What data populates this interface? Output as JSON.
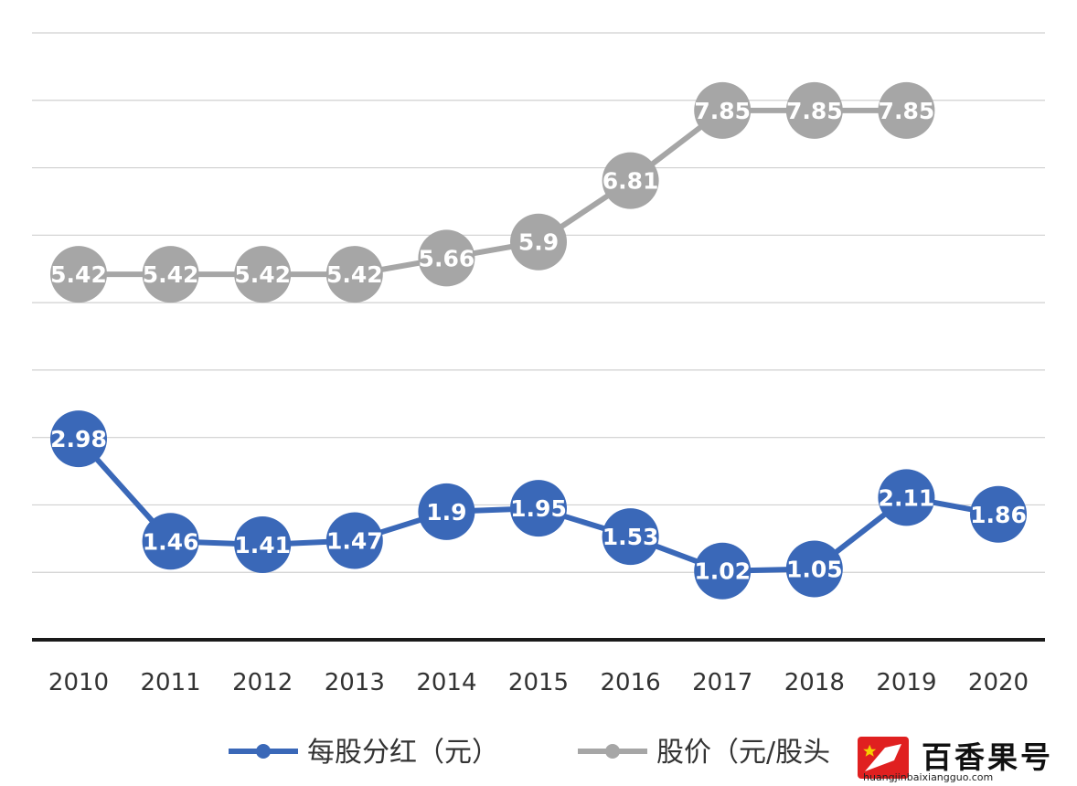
{
  "chart_data": {
    "type": "line",
    "categories": [
      "2010",
      "2011",
      "2012",
      "2013",
      "2014",
      "2015",
      "2016",
      "2017",
      "2018",
      "2019",
      "2020"
    ],
    "series": [
      {
        "name": "每股分红（元）",
        "color": "#3a68b8",
        "values": [
          2.98,
          1.46,
          1.41,
          1.47,
          1.9,
          1.95,
          1.53,
          1.02,
          1.05,
          2.11,
          1.86
        ],
        "labels": [
          "2.98",
          "1.46",
          "1.41",
          "1.47",
          "1.9",
          "1.95",
          "1.53",
          "1.02",
          "1.05",
          "2.11",
          "1.86"
        ]
      },
      {
        "name": "股价（元/股头",
        "color": "#a6a6a6",
        "values": [
          5.42,
          5.42,
          5.42,
          5.42,
          5.66,
          5.9,
          6.81,
          7.85,
          7.85,
          7.85,
          null
        ],
        "labels": [
          "5.42",
          "5.42",
          "5.42",
          "5.42",
          "5.66",
          "5.9",
          "6.81",
          "7.85",
          "7.85",
          "7.85",
          null
        ]
      }
    ],
    "ylim": [
      0,
      9
    ],
    "grid": true,
    "legend": "bottom",
    "title": "",
    "xlabel": "",
    "ylabel": ""
  },
  "watermark": {
    "title": "百香果号",
    "url": "huangjinbaixiangguo.com",
    "logo_color": "#e02020"
  }
}
